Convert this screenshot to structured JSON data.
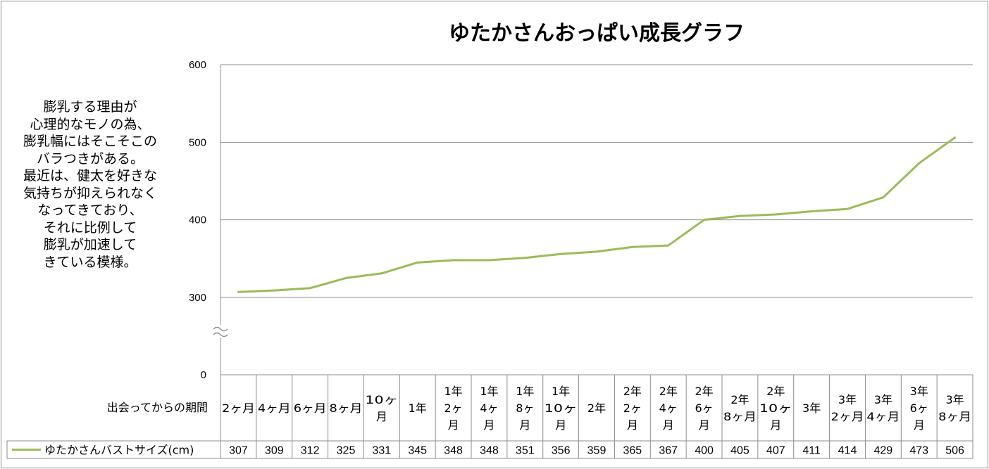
{
  "chart_data": {
    "type": "line",
    "title": "ゆたかさんおっぱい成長グラフ",
    "annotation": [
      "膨乳する理由が",
      "心理的なモノの為、",
      "膨乳幅にはそこそこの",
      "バラつきがある。",
      "最近は、健太を好きな",
      "気持ちが抑えられなく",
      "なってきており、",
      "それに比例して",
      "膨乳が加速して",
      "きている模様。"
    ],
    "xlabel": "出会ってからの期間",
    "categories": [
      "2ヶ月",
      "4ヶ月",
      "6ヶ月",
      "8ヶ月",
      "10ヶ月",
      "1年",
      "1年2ヶ月",
      "1年4ヶ月",
      "1年8ヶ月",
      "1年10ヶ月",
      "2年",
      "2年2ヶ月",
      "2年4ヶ月",
      "2年6ヶ月",
      "2年8ヶ月",
      "2年10ヶ月",
      "3年",
      "3年2ヶ月",
      "3年4ヶ月",
      "3年6ヶ月",
      "3年8ヶ月"
    ],
    "category_display": [
      [
        "2ヶ月"
      ],
      [
        "4ヶ月"
      ],
      [
        "6ヶ月"
      ],
      [
        "8ヶ月"
      ],
      [
        "10ヶ",
        "月"
      ],
      [
        "1年"
      ],
      [
        "1年",
        "2ヶ",
        "月"
      ],
      [
        "1年",
        "4ヶ",
        "月"
      ],
      [
        "1年",
        "8ヶ",
        "月"
      ],
      [
        "1年",
        "10ヶ",
        "月"
      ],
      [
        "2年"
      ],
      [
        "2年",
        "2ヶ",
        "月"
      ],
      [
        "2年",
        "4ヶ",
        "月"
      ],
      [
        "2年",
        "6ヶ",
        "月"
      ],
      [
        "2年",
        "8ヶ月"
      ],
      [
        "2年",
        "10ヶ",
        "月"
      ],
      [
        "3年"
      ],
      [
        "3年",
        "2ヶ月"
      ],
      [
        "3年",
        "4ヶ月"
      ],
      [
        "3年",
        "6ヶ",
        "月"
      ],
      [
        "3年",
        "8ヶ月"
      ]
    ],
    "series": [
      {
        "name": "ゆたかさんバストサイズ(cm)",
        "color": "#9BBB59",
        "values": [
          307,
          309,
          312,
          325,
          331,
          345,
          348,
          348,
          351,
          356,
          359,
          365,
          367,
          400,
          405,
          407,
          411,
          414,
          429,
          473,
          506
        ]
      }
    ],
    "yticks": [
      0,
      300,
      400,
      500,
      600
    ],
    "ylim": [
      0,
      600
    ],
    "axis_break": [
      0,
      300
    ],
    "grid": true,
    "legend": "data-table"
  }
}
